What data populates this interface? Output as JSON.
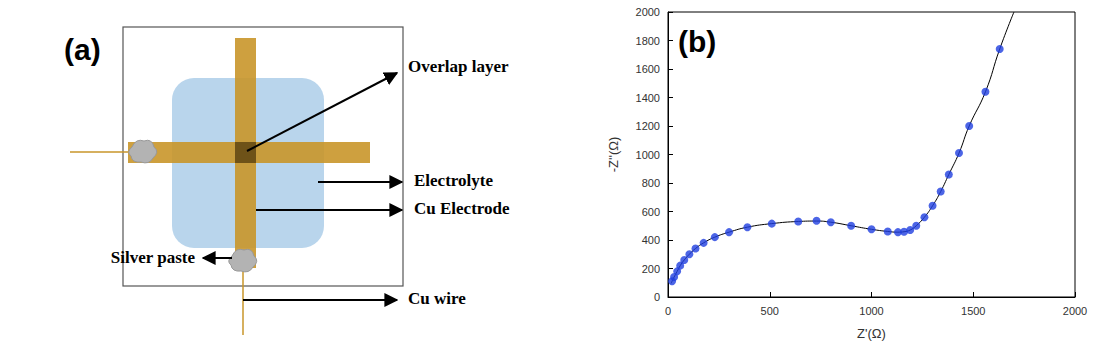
{
  "panel_a": {
    "label": "(a)",
    "callouts": {
      "overlap": "Overlap layer",
      "electrolyte": "Electrolyte",
      "electrode": "Cu Electrode",
      "paste": "Silver paste",
      "wire": "Cu wire"
    }
  },
  "chart_data": {
    "type": "scatter",
    "annotations": [
      "(b)"
    ],
    "x_label": "Z'(Ω)",
    "y_label": "-Z''(Ω)",
    "xlim": [
      0,
      2000
    ],
    "xticks": [
      0,
      500,
      1000,
      1500,
      2000
    ],
    "ylim": [
      0,
      2000
    ],
    "yticks": [
      0,
      200,
      400,
      600,
      800,
      1000,
      1200,
      1400,
      1600,
      1800,
      2000
    ],
    "grid": false,
    "series": [
      {
        "type": "line",
        "color": "#000000",
        "line_style": "solid",
        "x": [
          15,
          30,
          45,
          60,
          80,
          105,
          135,
          175,
          230,
          300,
          390,
          510,
          640,
          730,
          800,
          900,
          1000,
          1080,
          1130,
          1160,
          1190,
          1220,
          1260,
          1300,
          1340,
          1380,
          1430,
          1480,
          1560,
          1630,
          1700
        ],
        "values": [
          95,
          140,
          180,
          220,
          260,
          300,
          340,
          380,
          420,
          455,
          490,
          515,
          530,
          533,
          525,
          500,
          475,
          460,
          455,
          458,
          470,
          500,
          560,
          640,
          740,
          860,
          1010,
          1200,
          1440,
          1740,
          2000
        ]
      },
      {
        "type": "scatter",
        "color": "#1f3fe0",
        "marker": "circle",
        "x": [
          20,
          30,
          45,
          60,
          80,
          105,
          135,
          175,
          230,
          300,
          390,
          510,
          640,
          730,
          800,
          900,
          1000,
          1080,
          1130,
          1160,
          1190,
          1220,
          1260,
          1300,
          1340,
          1380,
          1430,
          1480,
          1560,
          1630
        ],
        "values": [
          110,
          140,
          180,
          220,
          260,
          300,
          340,
          380,
          420,
          455,
          490,
          515,
          530,
          535,
          525,
          500,
          475,
          460,
          455,
          458,
          470,
          500,
          560,
          640,
          740,
          860,
          1010,
          1200,
          1440,
          1740
        ]
      }
    ]
  }
}
